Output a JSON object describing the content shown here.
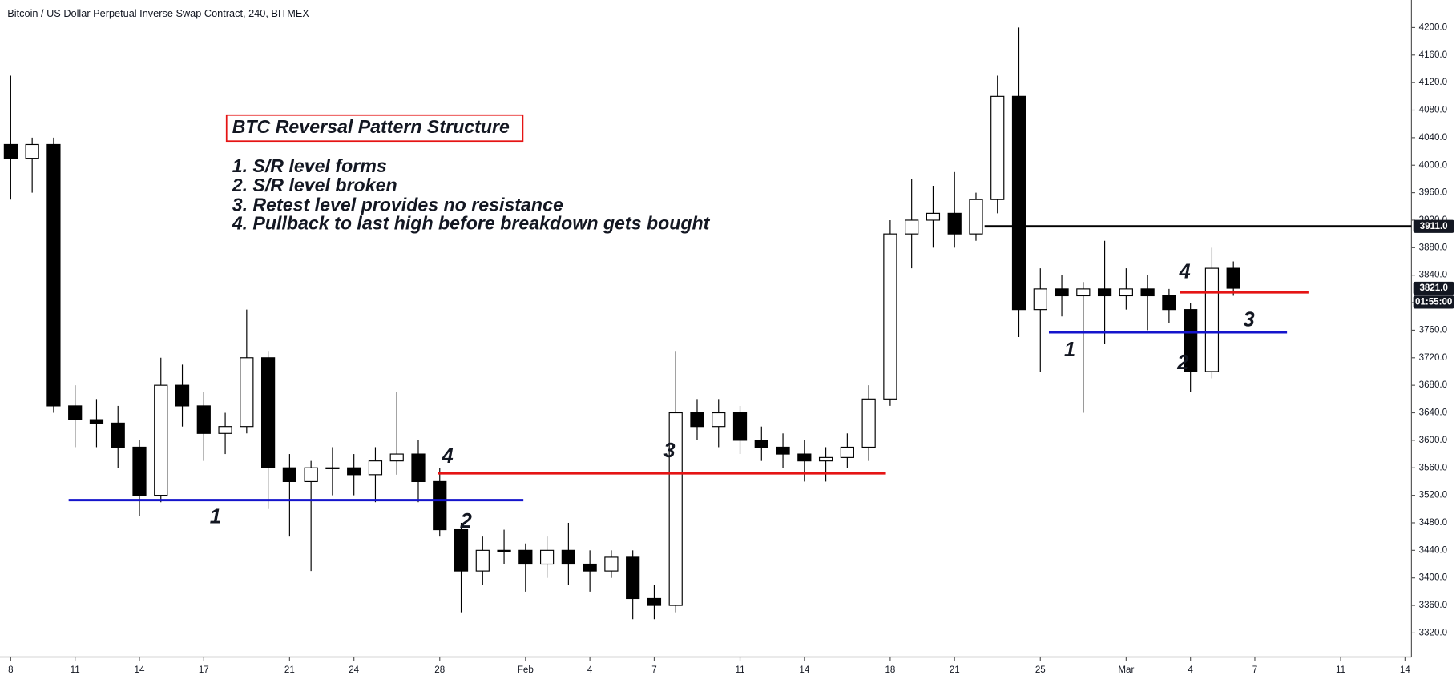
{
  "chart_data": {
    "type": "candlestick",
    "title": "Bitcoin / US Dollar Perpetual Inverse Swap Contract, 240, BITMEX",
    "x": [
      0,
      1,
      2,
      3,
      4,
      5,
      6,
      7,
      8,
      9,
      10,
      11,
      12,
      13,
      14,
      15,
      16,
      17,
      18,
      19,
      20,
      21,
      22,
      23,
      24,
      25,
      26,
      27,
      28,
      29,
      30,
      31,
      32,
      33,
      34,
      35,
      36,
      37,
      38,
      39,
      40,
      41,
      42,
      43,
      44,
      45,
      46,
      47,
      48,
      49,
      50,
      51,
      52,
      53,
      54,
      55,
      56,
      57
    ],
    "open": [
      4030,
      4010,
      4030,
      3650,
      3630,
      3625,
      3590,
      3520,
      3680,
      3650,
      3610,
      3620,
      3720,
      3560,
      3540,
      3560,
      3560,
      3550,
      3570,
      3580,
      3540,
      3470,
      3410,
      3440,
      3440,
      3420,
      3440,
      3420,
      3410,
      3430,
      3370,
      3360,
      3640,
      3620,
      3640,
      3600,
      3590,
      3580,
      3570,
      3575,
      3590,
      3660,
      3900,
      3920,
      3930,
      3900,
      3950,
      4100,
      3790,
      3820,
      3810,
      3820,
      3810,
      3820,
      3810,
      3790,
      3700,
      3850
    ],
    "high": [
      4130,
      4040,
      4040,
      3680,
      3660,
      3650,
      3600,
      3720,
      3710,
      3670,
      3640,
      3790,
      3730,
      3580,
      3570,
      3590,
      3580,
      3590,
      3670,
      3600,
      3560,
      3480,
      3460,
      3470,
      3450,
      3460,
      3480,
      3440,
      3440,
      3440,
      3390,
      3730,
      3660,
      3660,
      3650,
      3620,
      3610,
      3600,
      3590,
      3610,
      3680,
      3920,
      3980,
      3970,
      3990,
      3960,
      4130,
      4200,
      3850,
      3840,
      3830,
      3890,
      3850,
      3840,
      3820,
      3800,
      3880,
      3860
    ],
    "low": [
      3950,
      3960,
      3640,
      3590,
      3590,
      3560,
      3490,
      3510,
      3620,
      3570,
      3580,
      3610,
      3500,
      3460,
      3410,
      3520,
      3520,
      3510,
      3550,
      3510,
      3460,
      3350,
      3390,
      3420,
      3380,
      3400,
      3390,
      3380,
      3400,
      3340,
      3340,
      3350,
      3600,
      3590,
      3580,
      3570,
      3560,
      3540,
      3540,
      3560,
      3570,
      3650,
      3850,
      3880,
      3880,
      3890,
      3930,
      3750,
      3700,
      3780,
      3640,
      3740,
      3790,
      3760,
      3770,
      3670,
      3690,
      3810
    ],
    "close": [
      4010,
      4030,
      3650,
      3630,
      3625,
      3590,
      3520,
      3680,
      3650,
      3610,
      3620,
      3720,
      3560,
      3540,
      3560,
      3560,
      3550,
      3570,
      3580,
      3540,
      3470,
      3410,
      3440,
      3440,
      3420,
      3440,
      3420,
      3410,
      3430,
      3370,
      3360,
      3640,
      3620,
      3640,
      3600,
      3590,
      3580,
      3570,
      3575,
      3590,
      3660,
      3900,
      3920,
      3930,
      3900,
      3950,
      4100,
      3790,
      3820,
      3810,
      3820,
      3810,
      3820,
      3810,
      3790,
      3700,
      3850,
      3821
    ],
    "up_color": "#ffffff",
    "down_color": "#000000",
    "edge_color": "#000000",
    "xlim": [
      -0.5,
      65.3
    ],
    "ylim": [
      3285,
      4240
    ],
    "xticks": [
      {
        "value": 0,
        "label": "8"
      },
      {
        "value": 3,
        "label": "11"
      },
      {
        "value": 6,
        "label": "14"
      },
      {
        "value": 9,
        "label": "17"
      },
      {
        "value": 13,
        "label": "21"
      },
      {
        "value": 16,
        "label": "24"
      },
      {
        "value": 20,
        "label": "28"
      },
      {
        "value": 24,
        "label": "Feb"
      },
      {
        "value": 27,
        "label": "4"
      },
      {
        "value": 30,
        "label": "7"
      },
      {
        "value": 34,
        "label": "11"
      },
      {
        "value": 37,
        "label": "14"
      },
      {
        "value": 41,
        "label": "18"
      },
      {
        "value": 44,
        "label": "21"
      },
      {
        "value": 48,
        "label": "25"
      },
      {
        "value": 52,
        "label": "Mar"
      },
      {
        "value": 55,
        "label": "4"
      },
      {
        "value": 58,
        "label": "7"
      },
      {
        "value": 62,
        "label": "11"
      },
      {
        "value": 65,
        "label": "14"
      }
    ],
    "yticks": [
      {
        "value": 3320,
        "label": "3320.0"
      },
      {
        "value": 3360,
        "label": "3360.0"
      },
      {
        "value": 3400,
        "label": "3400.0"
      },
      {
        "value": 3440,
        "label": "3440.0"
      },
      {
        "value": 3480,
        "label": "3480.0"
      },
      {
        "value": 3520,
        "label": "3520.0"
      },
      {
        "value": 3560,
        "label": "3560.0"
      },
      {
        "value": 3600,
        "label": "3600.0"
      },
      {
        "value": 3640,
        "label": "3640.0"
      },
      {
        "value": 3680,
        "label": "3680.0"
      },
      {
        "value": 3720,
        "label": "3720.0"
      },
      {
        "value": 3760,
        "label": "3760.0"
      },
      {
        "value": 3800,
        "label": "3800.0"
      },
      {
        "value": 3840,
        "label": "3840.0"
      },
      {
        "value": 3880,
        "label": "3880.0"
      },
      {
        "value": 3920,
        "label": "3920.0"
      },
      {
        "value": 3960,
        "label": "3960.0"
      },
      {
        "value": 4000,
        "label": "4000.0"
      },
      {
        "value": 4040,
        "label": "4040.0"
      },
      {
        "value": 4080,
        "label": "4080.0"
      },
      {
        "value": 4120,
        "label": "4120.0"
      },
      {
        "value": 4160,
        "label": "4160.0"
      },
      {
        "value": 4200,
        "label": "4200.0"
      }
    ],
    "grid": false,
    "levels": [
      {
        "price": 3513,
        "start": 2.7,
        "end": 23.9,
        "color": "#1414cc"
      },
      {
        "price": 3552,
        "start": 19.9,
        "end": 40.8,
        "color": "#e51414"
      },
      {
        "price": 3911,
        "start": 45.4,
        "end": 65.3,
        "color": "#000000"
      },
      {
        "price": 3815,
        "start": 54.5,
        "end": 60.5,
        "color": "#e51414"
      },
      {
        "price": 3757,
        "start": 48.4,
        "end": 59.5,
        "color": "#1414cc"
      }
    ],
    "price_labels": [
      {
        "value": 3911,
        "label": "3911.0"
      },
      {
        "value": 3821,
        "label": "3821.0"
      }
    ],
    "countdown": "01:55:00",
    "annotation_title": "BTC Reversal Pattern Structure",
    "annotation_lines": [
      "1. S/R level forms",
      "2. S/R level broken",
      "3. Retest level provides no resistance",
      "4. Pullback to last high before breakdown gets bought"
    ],
    "step_labels": [
      "1",
      "2",
      "3",
      "4",
      "1",
      "2",
      "3",
      "4"
    ]
  }
}
